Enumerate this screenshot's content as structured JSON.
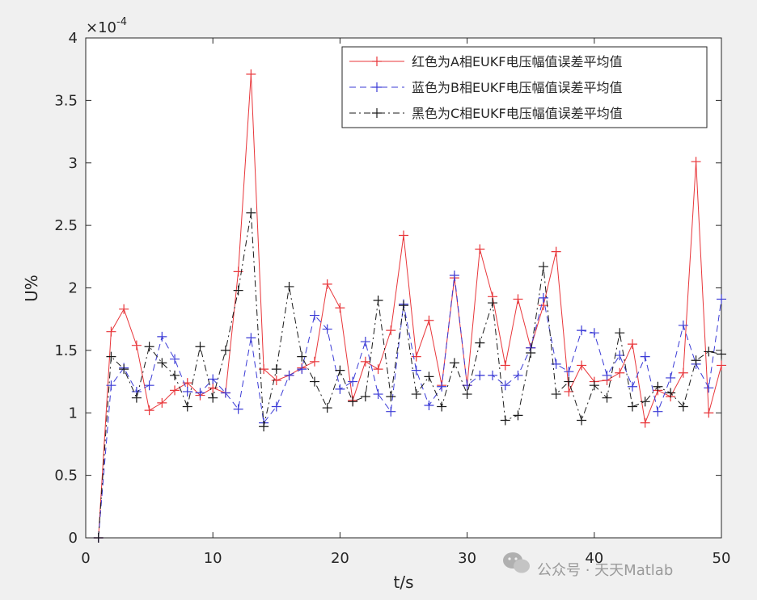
{
  "chart_data": {
    "type": "line",
    "xlabel": "t/s",
    "ylabel": "U%",
    "exponent_label": "×10",
    "exponent_power": "-4",
    "xlim": [
      0,
      50
    ],
    "ylim": [
      0,
      4
    ],
    "x_ticks": [
      0,
      10,
      20,
      30,
      40,
      50
    ],
    "x_tick_labels": [
      "0",
      "10",
      "20",
      "30",
      "40",
      "50"
    ],
    "y_ticks": [
      0,
      0.5,
      1,
      1.5,
      2,
      2.5,
      3,
      3.5,
      4
    ],
    "y_tick_labels": [
      "0",
      "0.5",
      "1",
      "1.5",
      "2",
      "2.5",
      "3",
      "3.5",
      "4"
    ],
    "grid": false,
    "legend_position": "top-right",
    "x": [
      1,
      2,
      3,
      4,
      5,
      6,
      7,
      8,
      9,
      10,
      11,
      12,
      13,
      14,
      15,
      16,
      17,
      18,
      19,
      20,
      21,
      22,
      23,
      24,
      25,
      26,
      27,
      28,
      29,
      30,
      31,
      32,
      33,
      34,
      35,
      36,
      37,
      38,
      39,
      40,
      41,
      42,
      43,
      44,
      45,
      46,
      47,
      48,
      49,
      50
    ],
    "series": [
      {
        "name": "红色为A相EUKF电压幅值误差平均值",
        "color": "#e8363a",
        "dash": "solid",
        "values": [
          0,
          1.65,
          1.83,
          1.54,
          1.02,
          1.08,
          1.18,
          1.24,
          1.14,
          1.2,
          1.16,
          2.13,
          3.71,
          1.35,
          1.26,
          1.3,
          1.36,
          1.41,
          2.03,
          1.84,
          1.1,
          1.41,
          1.35,
          1.66,
          2.42,
          1.45,
          1.74,
          1.22,
          2.08,
          1.22,
          2.31,
          1.93,
          1.38,
          1.91,
          1.52,
          1.86,
          2.29,
          1.17,
          1.38,
          1.25,
          1.26,
          1.32,
          1.55,
          0.92,
          1.18,
          1.13,
          1.32,
          3.01,
          1.0,
          1.38
        ]
      },
      {
        "name": "蓝色为B相EUKF电压幅值误差平均值",
        "color": "#3b3bd6",
        "dash": "dashed",
        "values": [
          0,
          1.22,
          1.36,
          1.17,
          1.22,
          1.61,
          1.43,
          1.17,
          1.16,
          1.27,
          1.16,
          1.03,
          1.6,
          0.92,
          1.05,
          1.3,
          1.35,
          1.78,
          1.67,
          1.19,
          1.25,
          1.57,
          1.15,
          1.01,
          1.87,
          1.34,
          1.06,
          1.21,
          2.1,
          1.22,
          1.3,
          1.3,
          1.22,
          1.3,
          1.52,
          1.92,
          1.39,
          1.33,
          1.66,
          1.64,
          1.3,
          1.46,
          1.21,
          1.45,
          1.01,
          1.28,
          1.7,
          1.39,
          1.2,
          1.91
        ]
      },
      {
        "name": "黑色为C相EUKF电压幅值误差平均值",
        "color": "#1a1a1a",
        "dash": "dashdot",
        "values": [
          0,
          1.45,
          1.35,
          1.12,
          1.53,
          1.4,
          1.3,
          1.05,
          1.53,
          1.12,
          1.5,
          1.98,
          2.6,
          0.89,
          1.35,
          2.01,
          1.45,
          1.25,
          1.04,
          1.34,
          1.09,
          1.13,
          1.9,
          1.13,
          1.86,
          1.15,
          1.29,
          1.05,
          1.4,
          1.15,
          1.56,
          1.88,
          0.94,
          0.98,
          1.48,
          2.17,
          1.15,
          1.25,
          0.94,
          1.22,
          1.12,
          1.64,
          1.05,
          1.09,
          1.21,
          1.16,
          1.05,
          1.42,
          1.49,
          1.47
        ]
      }
    ]
  },
  "watermark": {
    "icon": "wechat-icon",
    "text": "公众号 · 天天Matlab"
  }
}
